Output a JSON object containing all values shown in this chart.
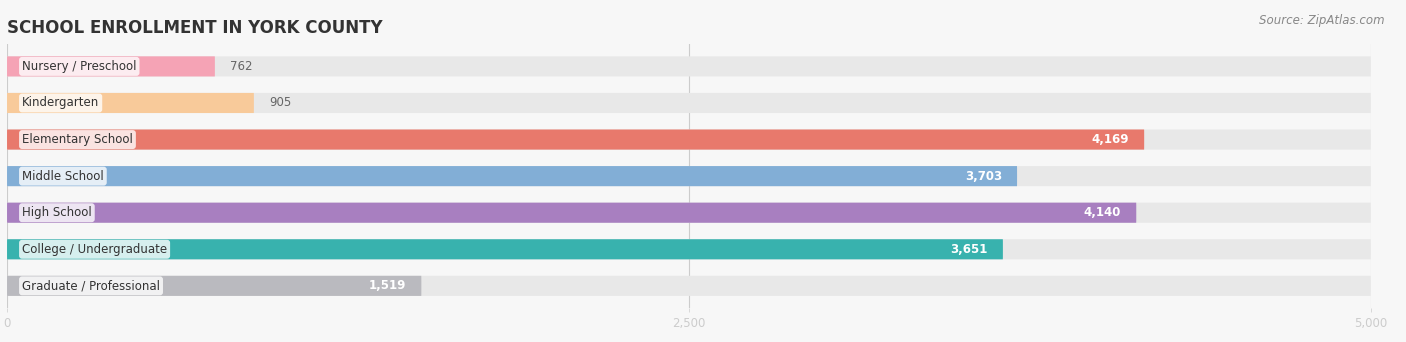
{
  "title": "SCHOOL ENROLLMENT IN YORK COUNTY",
  "source": "Source: ZipAtlas.com",
  "categories": [
    "Nursery / Preschool",
    "Kindergarten",
    "Elementary School",
    "Middle School",
    "High School",
    "College / Undergraduate",
    "Graduate / Professional"
  ],
  "values": [
    762,
    905,
    4169,
    3703,
    4140,
    3651,
    1519
  ],
  "bar_colors": [
    "#f5a3b5",
    "#f8ca9a",
    "#e8796c",
    "#82aed6",
    "#a87fc0",
    "#38b2ae",
    "#bababf"
  ],
  "bar_bg_color": "#e8e8e8",
  "xlim_max": 5000,
  "xticks": [
    0,
    2500,
    5000
  ],
  "title_fontsize": 12,
  "label_fontsize": 8.5,
  "tick_fontsize": 8.5,
  "source_fontsize": 8.5,
  "background_color": "#f7f7f7",
  "inside_label_threshold": 1200
}
